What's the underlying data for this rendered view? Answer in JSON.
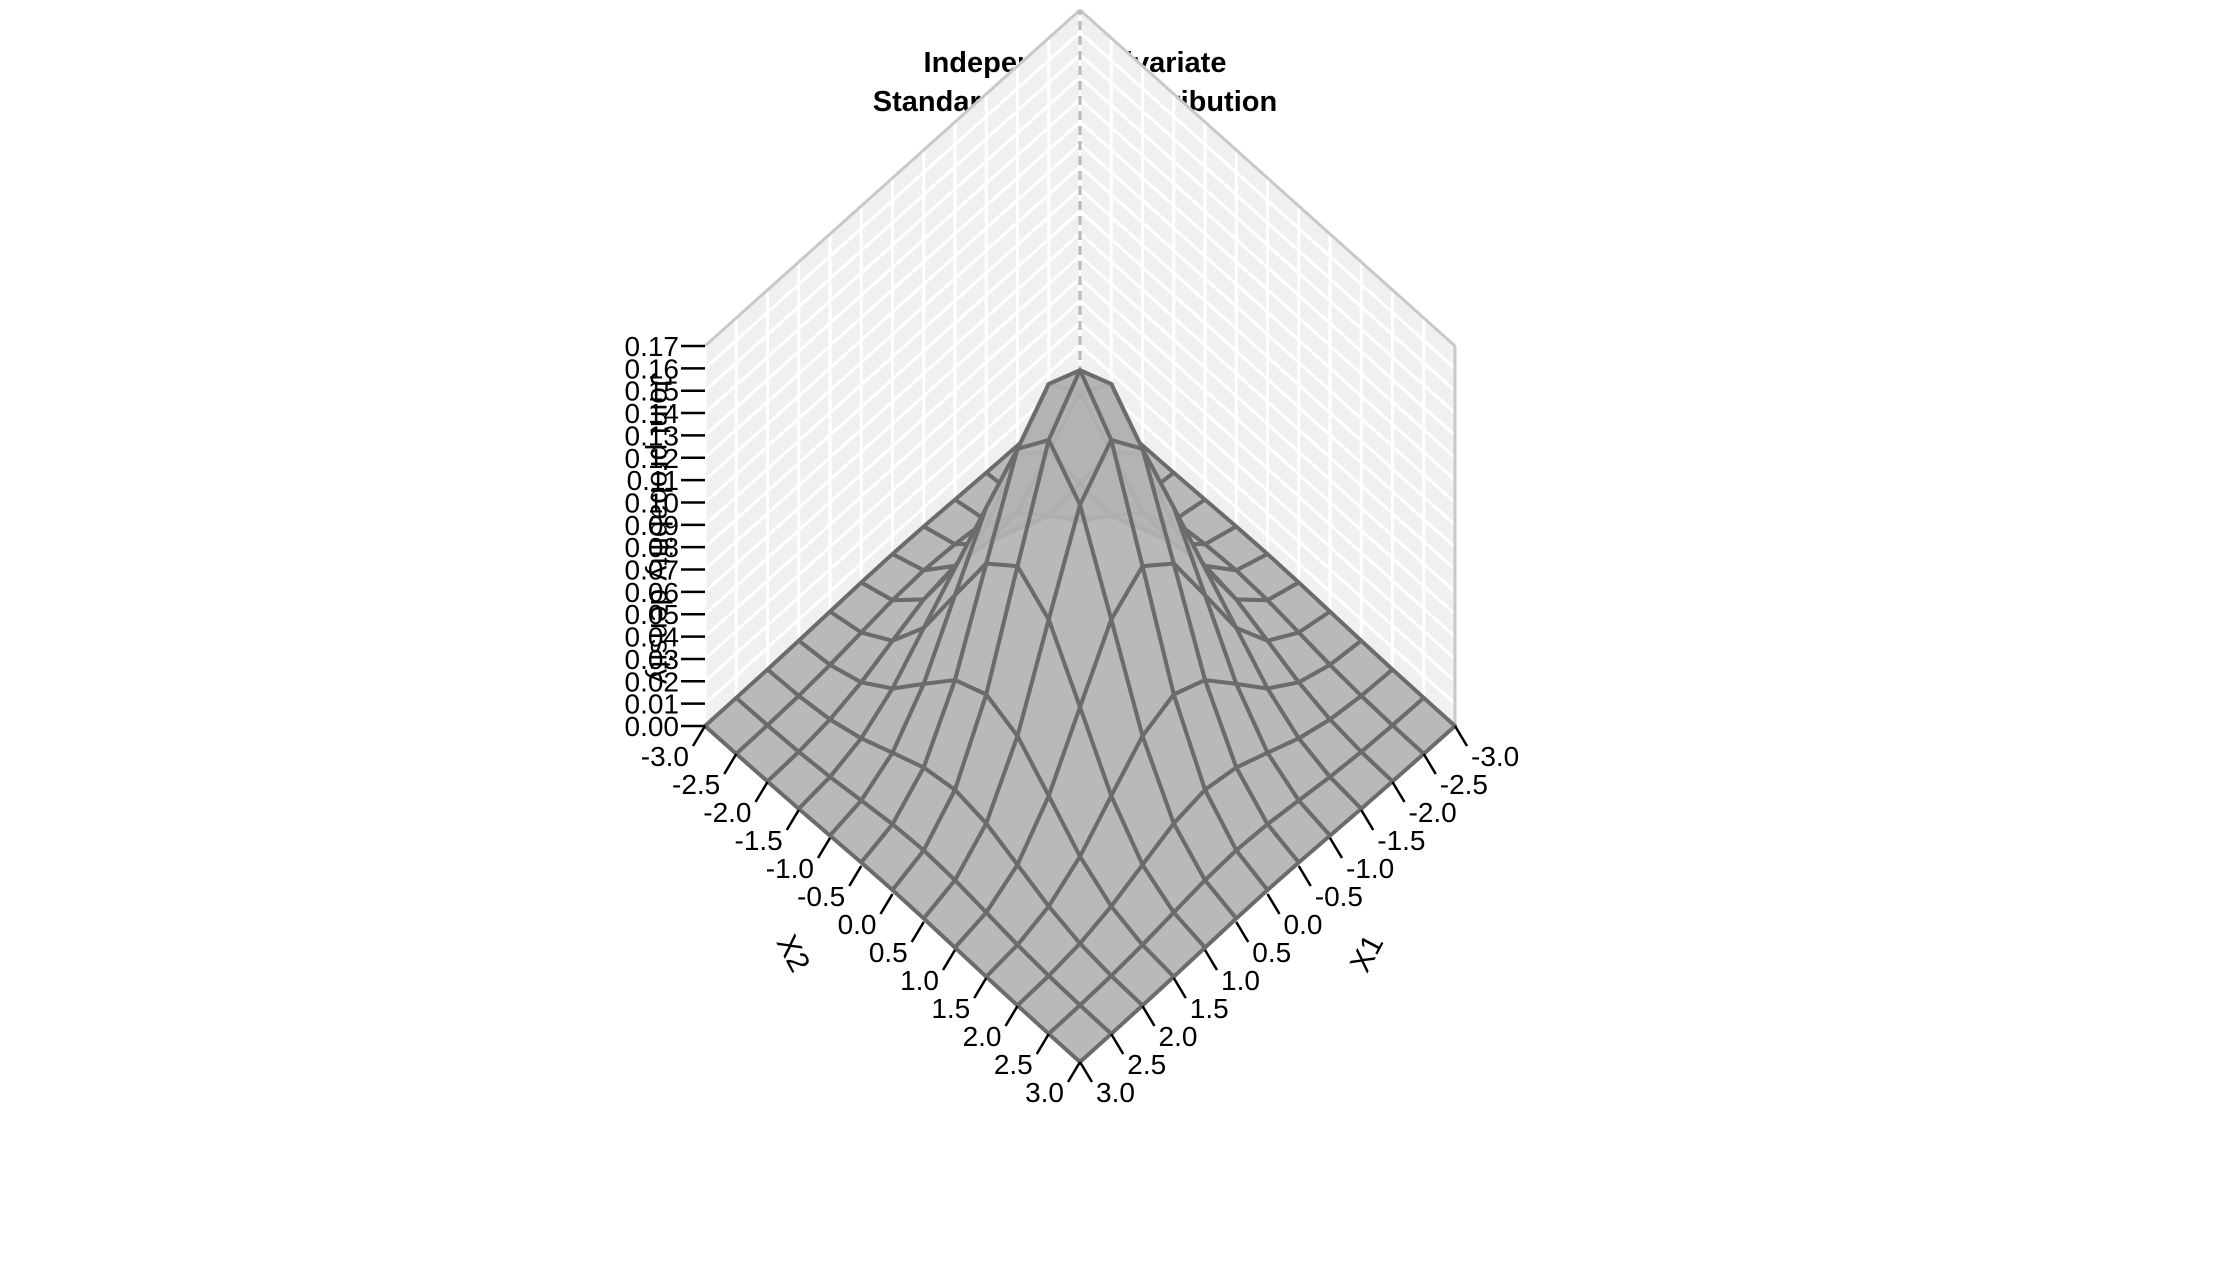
{
  "chart_data": {
    "type": "surface3d",
    "title_line1": "Independent Bivariate",
    "title_line2": "Standard Normal Distribution",
    "xlabel": "X1",
    "ylabel": "X2",
    "zlabel": "Joint probability density",
    "function": "bivariate standard normal density f(x1,x2) = exp(-(x1^2+x2^2)/2) / (2*pi)",
    "x1_range": [
      -3.0,
      3.0
    ],
    "x2_range": [
      -3.0,
      3.0
    ],
    "z_range": [
      0.0,
      0.17
    ],
    "grid_step": 0.5,
    "x1_ticks": [
      "-3.0",
      "-2.5",
      "-2.0",
      "-1.5",
      "-1.0",
      "-0.5",
      "0.0",
      "0.5",
      "1.0",
      "1.5",
      "2.0",
      "2.5",
      "3.0"
    ],
    "x2_ticks": [
      "-3.0",
      "-2.5",
      "-2.0",
      "-1.5",
      "-1.0",
      "-0.5",
      "0.0",
      "0.5",
      "1.0",
      "1.5",
      "2.0",
      "2.5",
      "3.0"
    ],
    "z_ticks": [
      "0.00",
      "0.01",
      "0.02",
      "0.03",
      "0.04",
      "0.05",
      "0.06",
      "0.07",
      "0.08",
      "0.09",
      "0.10",
      "0.11",
      "0.12",
      "0.13",
      "0.14",
      "0.15",
      "0.16",
      "0.17"
    ],
    "surface_color": "#b4b4b4",
    "mesh_color": "#6b6b6b",
    "wall_color": "#f0f0f0",
    "wall_grid_color": "#ffffff",
    "wall_edge_color": "#c8c8c8",
    "grid": true
  }
}
